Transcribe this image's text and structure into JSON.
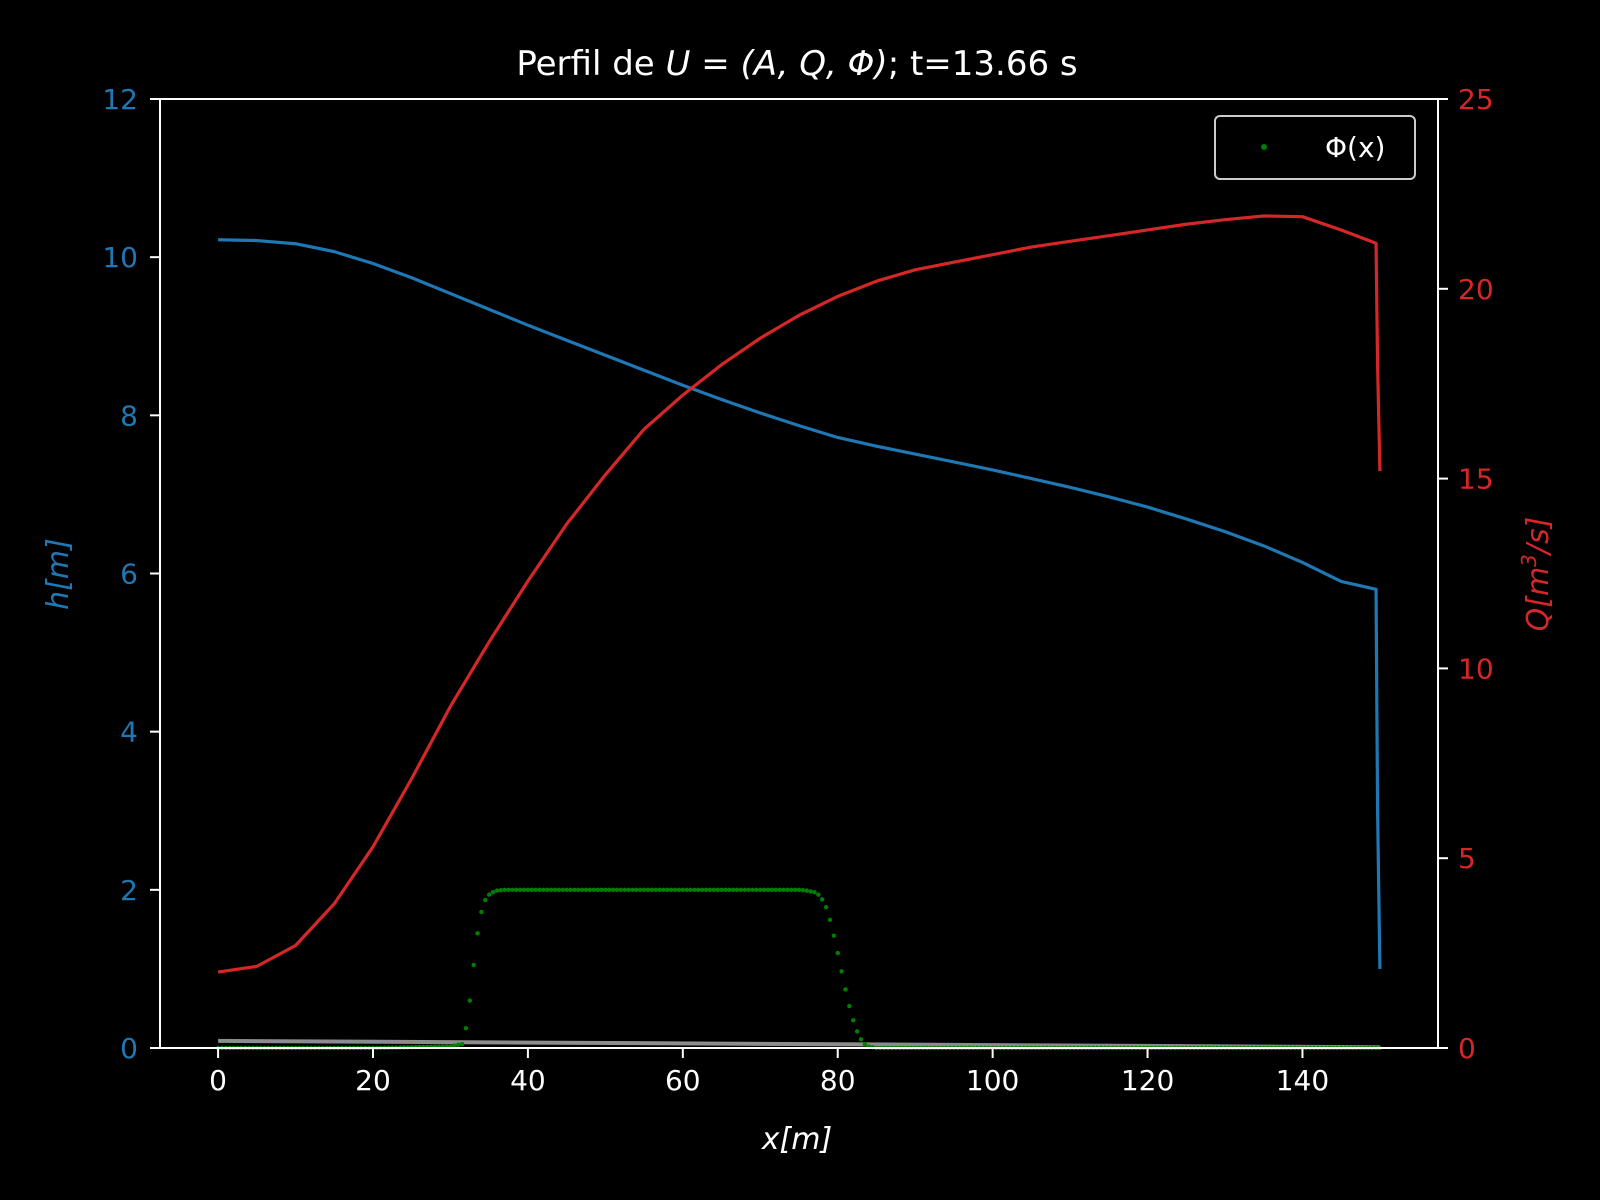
{
  "chart_data": {
    "type": "line",
    "title": {
      "prefix": "Perfil de ",
      "math": "U = (A, Q, Φ)",
      "suffix": "; t=13.66 s"
    },
    "xlabel": "x[m]",
    "ylabel_left": "h[m]",
    "ylabel_right": {
      "base": "Q[m",
      "sup": "3",
      "tail": "/s]"
    },
    "xlim": [
      -7.5,
      157.5
    ],
    "ylim_left": [
      0,
      12
    ],
    "ylim_right": [
      0,
      25
    ],
    "x_ticks": [
      0,
      20,
      40,
      60,
      80,
      100,
      120,
      140
    ],
    "y_left_ticks": [
      0,
      2,
      4,
      6,
      8,
      10,
      12
    ],
    "y_right_ticks": [
      0,
      5,
      10,
      15,
      20,
      25
    ],
    "grid": false,
    "legend": {
      "placement": "top-right",
      "entries": [
        "Φ(x)"
      ]
    },
    "colors": {
      "background": "#000000",
      "axes": "#ffffff",
      "h": "#1f77b4",
      "Q": "#d62728",
      "phi": "#008000",
      "bed": "#8c8c8c"
    },
    "series": [
      {
        "key": "h",
        "axis": "left",
        "style": "line",
        "x": [
          0,
          5,
          10,
          15,
          20,
          25,
          30,
          35,
          40,
          45,
          50,
          55,
          60,
          65,
          70,
          75,
          80,
          85,
          90,
          95,
          100,
          105,
          110,
          115,
          120,
          125,
          130,
          135,
          140,
          145,
          149.5,
          149.7,
          150
        ],
        "values": [
          10.22,
          10.21,
          10.17,
          10.07,
          9.92,
          9.74,
          9.54,
          9.34,
          9.14,
          8.95,
          8.76,
          8.57,
          8.38,
          8.2,
          8.03,
          7.87,
          7.72,
          7.61,
          7.51,
          7.41,
          7.31,
          7.2,
          7.09,
          6.97,
          6.84,
          6.69,
          6.53,
          6.35,
          6.14,
          5.9,
          5.8,
          3.0,
          1.0
        ]
      },
      {
        "key": "Q",
        "axis": "right",
        "style": "line",
        "x": [
          0,
          5,
          10,
          15,
          20,
          25,
          30,
          35,
          40,
          45,
          50,
          55,
          60,
          65,
          70,
          75,
          80,
          85,
          90,
          95,
          100,
          105,
          110,
          115,
          120,
          125,
          130,
          135,
          140,
          145,
          149.5,
          149.7,
          150
        ],
        "values": [
          2.0,
          2.15,
          2.7,
          3.8,
          5.3,
          7.1,
          9.0,
          10.7,
          12.3,
          13.8,
          15.1,
          16.3,
          17.2,
          18.0,
          18.7,
          19.3,
          19.8,
          20.2,
          20.5,
          20.7,
          20.9,
          21.1,
          21.25,
          21.4,
          21.55,
          21.7,
          21.82,
          21.92,
          21.9,
          21.55,
          21.2,
          18.0,
          15.2
        ]
      },
      {
        "key": "phi",
        "name": "Φ(x)",
        "axis": "left",
        "style": "dots",
        "x": [
          0,
          10,
          20,
          30,
          31.5,
          32,
          32.5,
          33,
          33.5,
          34,
          34.5,
          35,
          35.5,
          36,
          37,
          38,
          40,
          45,
          50,
          55,
          60,
          65,
          70,
          75,
          76,
          77,
          77.5,
          78,
          78.5,
          79,
          79.5,
          80,
          80.5,
          81,
          81.5,
          82,
          82.5,
          83,
          83.5,
          84,
          84.5,
          85,
          90,
          100,
          110,
          120,
          130,
          140,
          150
        ],
        "values": [
          0,
          0,
          0,
          0.02,
          0.05,
          0.25,
          0.6,
          1.05,
          1.45,
          1.72,
          1.87,
          1.94,
          1.97,
          1.99,
          2.0,
          2.0,
          2.0,
          2.0,
          2.0,
          2.0,
          2.0,
          2.0,
          2.0,
          2.0,
          1.99,
          1.97,
          1.94,
          1.88,
          1.78,
          1.62,
          1.42,
          1.2,
          0.97,
          0.74,
          0.53,
          0.35,
          0.21,
          0.11,
          0.05,
          0.02,
          0.01,
          0.0,
          0,
          0,
          0,
          0,
          0,
          0,
          0
        ]
      },
      {
        "key": "bed",
        "axis": "left",
        "style": "line",
        "x": [
          0,
          150
        ],
        "values": [
          0.09,
          0.01
        ]
      }
    ]
  }
}
